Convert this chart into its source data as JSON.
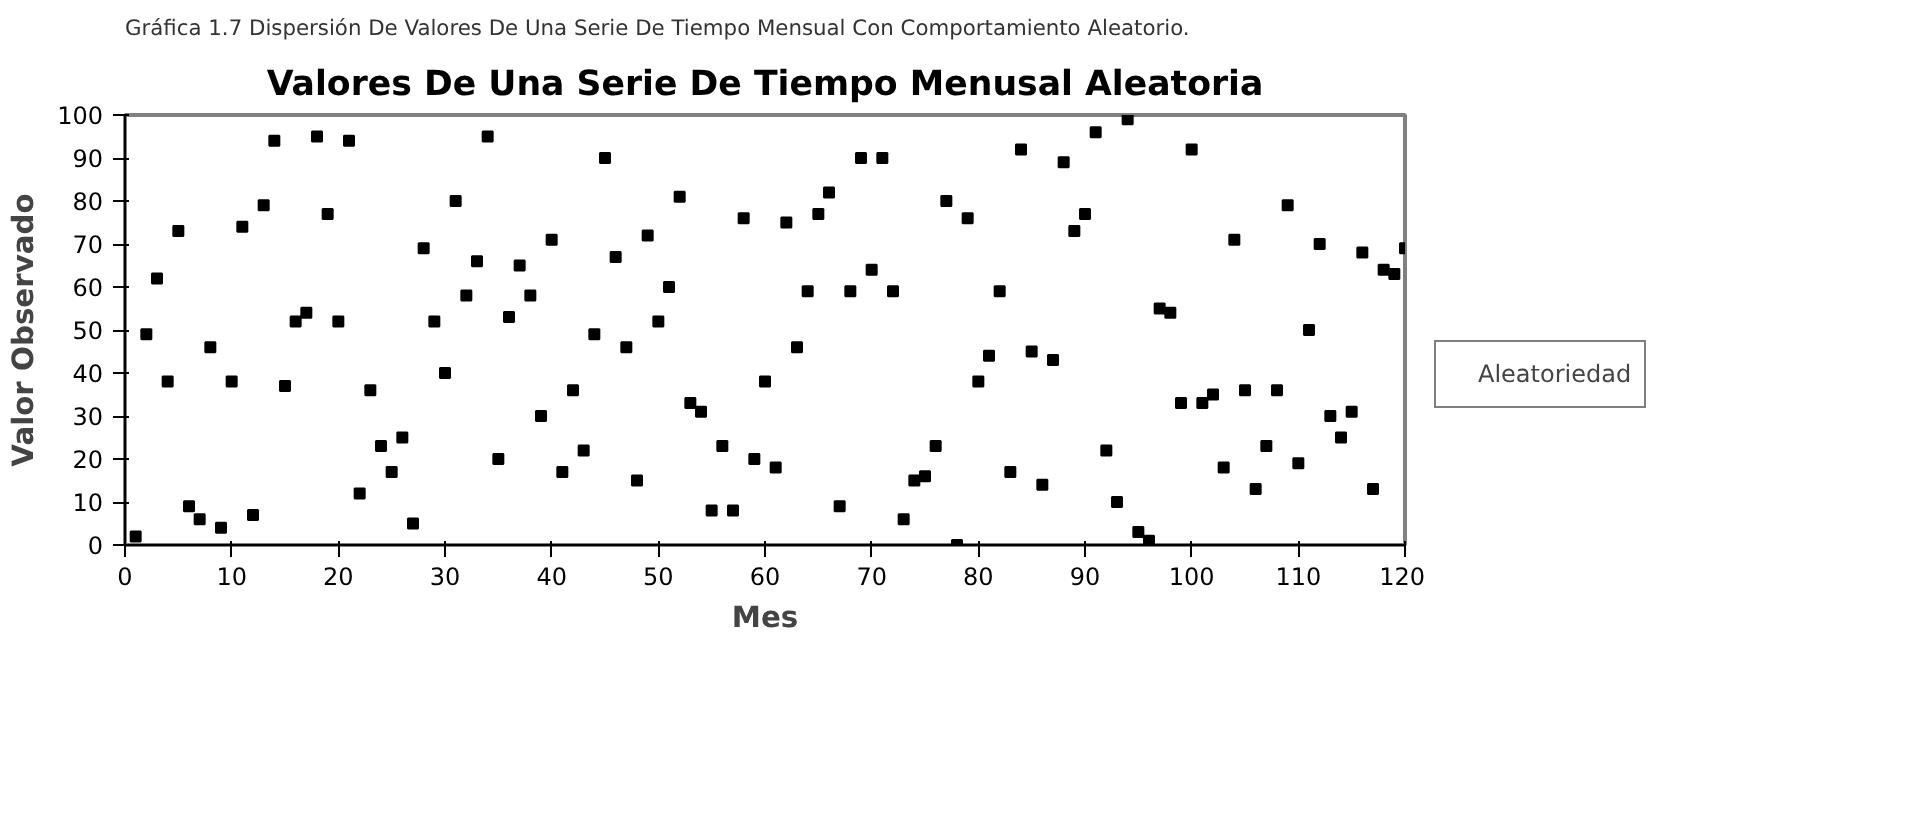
{
  "chart_data": {
    "type": "scatter",
    "title": "Valores De Una Serie De Tiempo Menusal Aleatoria",
    "xlabel": "Mes",
    "ylabel": "Valor Observado",
    "annotations": [
      "Gráfica 1.7 Dispersión De Valores De Una Serie De Tiempo Mensual Con Comportamiento Aleatorio."
    ],
    "x": [
      1,
      2,
      3,
      4,
      5,
      6,
      7,
      8,
      9,
      10,
      11,
      12,
      13,
      14,
      15,
      16,
      17,
      18,
      19,
      20,
      21,
      22,
      23,
      24,
      25,
      26,
      27,
      28,
      29,
      30,
      31,
      32,
      33,
      34,
      35,
      36,
      37,
      38,
      39,
      40,
      41,
      42,
      43,
      44,
      45,
      46,
      47,
      48,
      49,
      50,
      51,
      52,
      53,
      54,
      55,
      56,
      57,
      58,
      59,
      60,
      61,
      62,
      63,
      64,
      65,
      66,
      67,
      68,
      69,
      70,
      71,
      72,
      73,
      74,
      75,
      76,
      77,
      78,
      79,
      80,
      81,
      82,
      83,
      84,
      85,
      86,
      87,
      88,
      89,
      90,
      91,
      92,
      93,
      94,
      95,
      96,
      97,
      98,
      99,
      100,
      101,
      102,
      103,
      104,
      105,
      106,
      107,
      108,
      109,
      110,
      111,
      112,
      113,
      114,
      115,
      116,
      117,
      118,
      119,
      120
    ],
    "series": [
      {
        "name": "Aleatoriedad",
        "color": "#000000",
        "values": [
          2,
          49,
          62,
          38,
          73,
          9,
          6,
          46,
          4,
          38,
          74,
          7,
          79,
          94,
          37,
          52,
          54,
          95,
          77,
          52,
          94,
          12,
          36,
          23,
          17,
          25,
          5,
          69,
          52,
          40,
          80,
          58,
          66,
          95,
          20,
          53,
          65,
          58,
          30,
          71,
          17,
          36,
          22,
          49,
          90,
          67,
          46,
          15,
          72,
          52,
          60,
          81,
          33,
          31,
          8,
          23,
          8,
          76,
          20,
          38,
          18,
          75,
          46,
          59,
          77,
          82,
          9,
          59,
          90,
          64,
          90,
          59,
          6,
          15,
          16,
          23,
          80,
          0,
          76,
          38,
          44,
          59,
          17,
          92,
          45,
          14,
          43,
          89,
          73,
          77,
          96,
          22,
          10,
          99,
          3,
          1,
          55,
          54,
          33,
          92,
          33,
          35,
          18,
          71,
          36,
          13,
          23,
          36,
          79,
          19,
          50,
          70,
          30,
          25,
          31,
          68,
          13,
          64,
          63,
          69
        ]
      }
    ],
    "xlim": [
      0,
      120
    ],
    "ylim": [
      0,
      100
    ],
    "xticks": [
      0,
      10,
      20,
      30,
      40,
      50,
      60,
      70,
      80,
      90,
      100,
      110,
      120
    ],
    "yticks": [
      0,
      10,
      20,
      30,
      40,
      50,
      60,
      70,
      80,
      90,
      100
    ],
    "grid": false,
    "legend": "right",
    "marker": "square"
  }
}
